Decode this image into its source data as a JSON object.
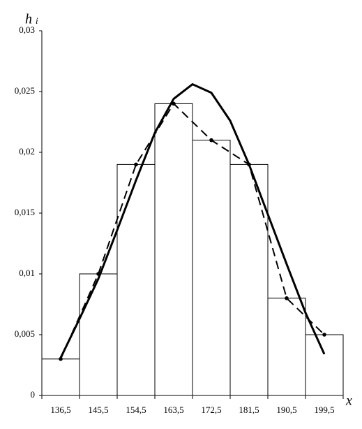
{
  "chart_data": {
    "type": "histogram",
    "y_label": "h",
    "y_label_sub": "i",
    "x_label": "x",
    "bins": [
      132,
      141,
      150,
      159,
      168,
      177,
      186,
      195,
      204
    ],
    "values": [
      0.003,
      0.01,
      0.019,
      0.024,
      0.021,
      0.019,
      0.008,
      0.005
    ],
    "bar_color": "#ffffff",
    "edge_color": "#000000",
    "xlim": [
      132,
      204
    ],
    "ylim": [
      0,
      0.03
    ],
    "xticks": [
      {
        "value": 136.5,
        "label": "136,5"
      },
      {
        "value": 145.5,
        "label": "145,5"
      },
      {
        "value": 154.5,
        "label": "154,5"
      },
      {
        "value": 163.5,
        "label": "163,5"
      },
      {
        "value": 172.5,
        "label": "172,5"
      },
      {
        "value": 181.5,
        "label": "181,5"
      },
      {
        "value": 190.5,
        "label": "190,5"
      },
      {
        "value": 199.5,
        "label": "199,5"
      }
    ],
    "yticks": [
      0,
      {
        "value": 0.005,
        "label": "0,005"
      },
      {
        "value": 0.01,
        "label": "0,01"
      },
      {
        "value": 0.015,
        "label": "0,015"
      },
      {
        "value": 0.02,
        "label": "0,02"
      },
      {
        "value": 0.025,
        "label": "0,025"
      },
      {
        "value": 0.03,
        "label": "0,03"
      }
    ],
    "lines": [
      {
        "style": "dashed",
        "markers": true,
        "color": "#000000",
        "x": [
          136.5,
          145.5,
          154.5,
          163.5,
          172.5,
          181.5,
          190.5,
          199.5
        ],
        "values": [
          0.003,
          0.01,
          0.019,
          0.024,
          0.021,
          0.019,
          0.008,
          0.005
        ]
      },
      {
        "style": "solid",
        "markers": false,
        "color": "#000000",
        "x": [
          136.5,
          141,
          145.5,
          150,
          154.5,
          159,
          163.5,
          168,
          172.5,
          177,
          181.5,
          186,
          190.5,
          195,
          199.5
        ],
        "values": [
          0.0031,
          0.0063,
          0.0096,
          0.0136,
          0.0177,
          0.0216,
          0.0244,
          0.0256,
          0.0249,
          0.0226,
          0.019,
          0.0149,
          0.0108,
          0.0068,
          0.0034
        ]
      }
    ]
  }
}
